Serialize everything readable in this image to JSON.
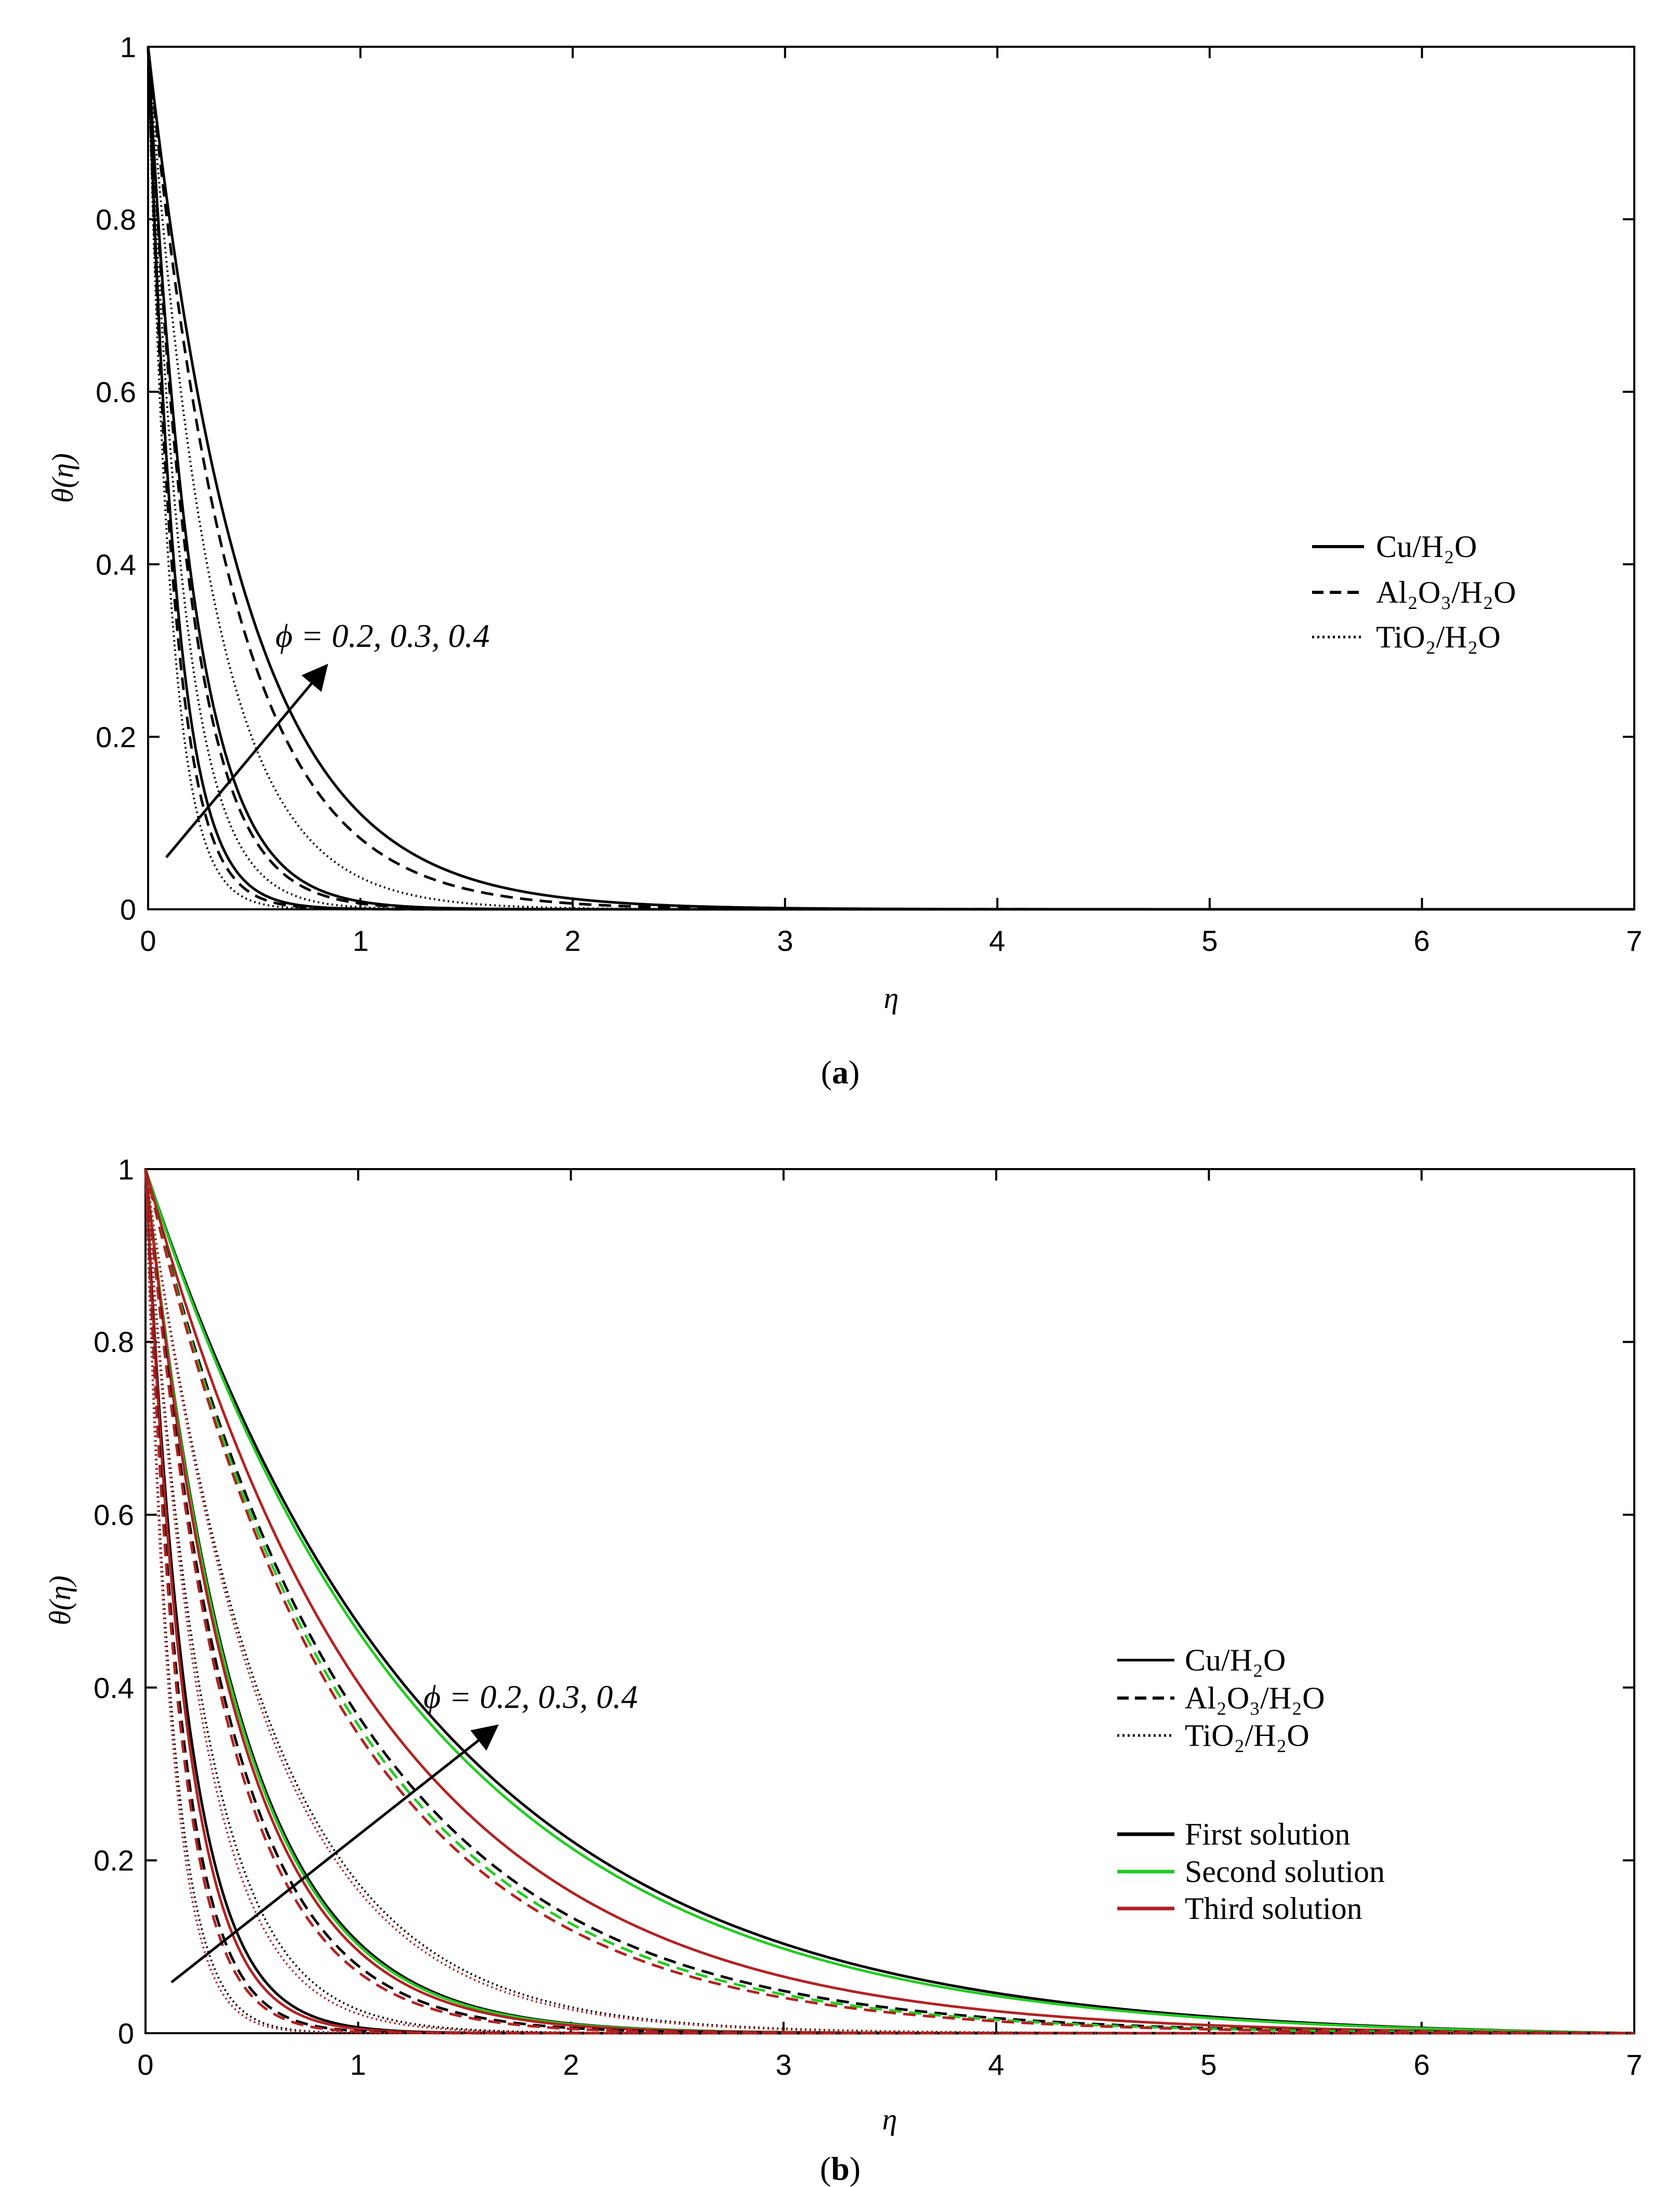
{
  "chart_data": [
    {
      "id": "a",
      "type": "line",
      "caption_open": "(",
      "caption_letter": "a",
      "caption_close": ")",
      "xlabel": "η",
      "ylabel": "θ(η)",
      "xlim": [
        0,
        7
      ],
      "ylim": [
        0,
        1
      ],
      "xticks": [
        "0",
        "1",
        "2",
        "3",
        "4",
        "5",
        "6",
        "7"
      ],
      "yticks": [
        "0",
        "0.2",
        "0.4",
        "0.6",
        "0.8",
        "1"
      ],
      "annotation": "ϕ = 0.2, 0.3, 0.4",
      "legend_position": "right",
      "legend": [
        {
          "label": "Cu/H₂O",
          "style": "solid"
        },
        {
          "label": "Al₂O₃/H₂O",
          "style": "dashed"
        },
        {
          "label": "TiO₂/H₂O",
          "style": "dotted"
        }
      ],
      "series": [
        {
          "name": "Cu/H₂O, ϕ = 0.2",
          "style": "solid",
          "color": "#000000",
          "decay": 7.5
        },
        {
          "name": "Cu/H₂O, ϕ = 0.3",
          "style": "solid",
          "color": "#000000",
          "decay": 4.7
        },
        {
          "name": "Cu/H₂O, ϕ = 0.4",
          "style": "solid",
          "color": "#000000",
          "decay": 2.2
        },
        {
          "name": "Al₂O₃/H₂O, ϕ = 0.2",
          "style": "dashed",
          "color": "#000000",
          "decay": 8.2
        },
        {
          "name": "Al₂O₃/H₂O, ϕ = 0.3",
          "style": "dashed",
          "color": "#000000",
          "decay": 5.0
        },
        {
          "name": "Al₂O₃/H₂O, ϕ = 0.4",
          "style": "dashed",
          "color": "#000000",
          "decay": 2.5
        },
        {
          "name": "TiO₂/H₂O, ϕ = 0.2",
          "style": "dotted",
          "color": "#000000",
          "decay": 9.5
        },
        {
          "name": "TiO₂/H₂O, ϕ = 0.3",
          "style": "dotted",
          "color": "#000000",
          "decay": 6.0
        },
        {
          "name": "TiO₂/H₂O, ϕ = 0.4",
          "style": "dotted",
          "color": "#000000",
          "decay": 3.3
        }
      ]
    },
    {
      "id": "b",
      "type": "line",
      "caption_open": "(",
      "caption_letter": "b",
      "caption_close": ")",
      "xlabel": "η",
      "ylabel": "θ(η)",
      "xlim": [
        0,
        7
      ],
      "ylim": [
        0,
        1
      ],
      "xticks": [
        "0",
        "1",
        "2",
        "3",
        "4",
        "5",
        "6",
        "7"
      ],
      "yticks": [
        "0",
        "0.2",
        "0.4",
        "0.6",
        "0.8",
        "1"
      ],
      "annotation": "ϕ = 0.2, 0.3, 0.4",
      "legend_position": "right",
      "legend": [
        {
          "label": "Cu/H₂O",
          "style": "solid"
        },
        {
          "label": "Al₂O₃/H₂O",
          "style": "dashed"
        },
        {
          "label": "TiO₂/H₂O",
          "style": "dotted"
        }
      ],
      "legend2": [
        {
          "label": "First solution",
          "color": "#000000"
        },
        {
          "label": "Second solution",
          "color": "#22cc22"
        },
        {
          "label": "Third solution",
          "color": "#b22222"
        }
      ],
      "series": [
        {
          "name": "Cu/H₂O ϕ=0.4 first",
          "style": "solid",
          "color": "#000000",
          "k": 0.74
        },
        {
          "name": "Cu/H₂O ϕ=0.4 second",
          "style": "solid",
          "color": "#22cc22",
          "k": 0.76
        },
        {
          "name": "Cu/H₂O ϕ=0.4 third",
          "style": "solid",
          "color": "#b22222",
          "k": 0.9
        },
        {
          "name": "Al₂O₃/H₂O ϕ=0.4 first",
          "style": "dashed",
          "color": "#000000",
          "k": 1.0
        },
        {
          "name": "Al₂O₃/H₂O ϕ=0.4 second",
          "style": "dashed",
          "color": "#22cc22",
          "k": 1.03
        },
        {
          "name": "Al₂O₃/H₂O ϕ=0.4 third",
          "style": "dashed",
          "color": "#b22222",
          "k": 1.06
        },
        {
          "name": "TiO₂/H₂O ϕ=0.4 first",
          "style": "dotted",
          "color": "#000000",
          "k": 1.75
        },
        {
          "name": "TiO₂/H₂O ϕ=0.4 third",
          "style": "dotted",
          "color": "#b22222",
          "k": 1.8
        },
        {
          "name": "Cu/H₂O ϕ=0.3 first",
          "style": "solid",
          "color": "#000000",
          "k": 2.25
        },
        {
          "name": "Cu/H₂O ϕ=0.3 second",
          "style": "solid",
          "color": "#22cc22",
          "k": 2.28
        },
        {
          "name": "Cu/H₂O ϕ=0.3 third",
          "style": "solid",
          "color": "#b22222",
          "k": 2.35
        },
        {
          "name": "Al₂O₃/H₂O ϕ=0.3 first",
          "style": "dashed",
          "color": "#000000",
          "k": 2.55
        },
        {
          "name": "Al₂O₃/H₂O ϕ=0.3 third",
          "style": "dashed",
          "color": "#b22222",
          "k": 2.65
        },
        {
          "name": "TiO₂/H₂O ϕ=0.3 first",
          "style": "dotted",
          "color": "#000000",
          "k": 3.6
        },
        {
          "name": "TiO₂/H₂O ϕ=0.3 third",
          "style": "dotted",
          "color": "#b22222",
          "k": 3.8
        },
        {
          "name": "Cu/H₂O ϕ=0.2 first",
          "style": "solid",
          "color": "#000000",
          "k": 5.0
        },
        {
          "name": "Cu/H₂O ϕ=0.2 third",
          "style": "solid",
          "color": "#b22222",
          "k": 5.3
        },
        {
          "name": "Al₂O₃/H₂O ϕ=0.2 first",
          "style": "dashed",
          "color": "#000000",
          "k": 6.0
        },
        {
          "name": "Al₂O₃/H₂O ϕ=0.2 third",
          "style": "dashed",
          "color": "#b22222",
          "k": 6.3
        },
        {
          "name": "TiO₂/H₂O ϕ=0.2 first",
          "style": "dotted",
          "color": "#000000",
          "k": 8.0
        },
        {
          "name": "TiO₂/H₂O ϕ=0.2 third",
          "style": "dotted",
          "color": "#b22222",
          "k": 8.5
        }
      ]
    }
  ]
}
